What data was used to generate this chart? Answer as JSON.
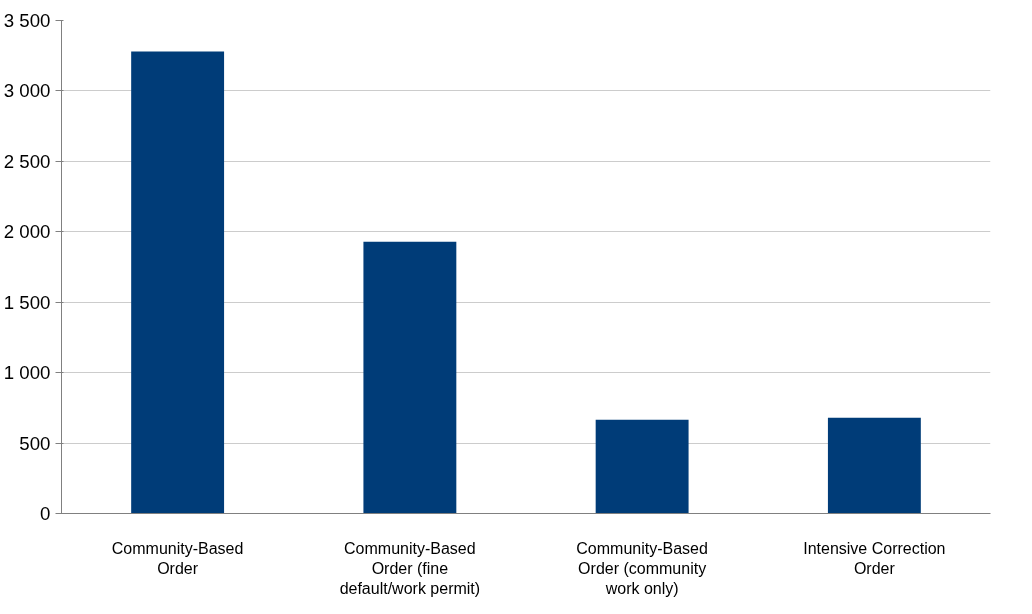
{
  "chart_data": {
    "type": "bar",
    "categories": [
      "Community-Based Order",
      "Community-Based Order (fine default/work permit)",
      "Community-Based Order (community work only)",
      "Intensive Correction Order"
    ],
    "values": [
      3280,
      1930,
      665,
      680
    ],
    "color": "#003c78",
    "ylim": [
      0,
      3500
    ],
    "yticks": [
      {
        "value": 0,
        "label": "0"
      },
      {
        "value": 500,
        "label": "500"
      },
      {
        "value": 1000,
        "label": "1 000"
      },
      {
        "value": 1500,
        "label": "1 500"
      },
      {
        "value": 2000,
        "label": "2 000"
      },
      {
        "value": 2500,
        "label": "2 500"
      },
      {
        "value": 3000,
        "label": "3 000"
      },
      {
        "value": 3500,
        "label": "3 500"
      }
    ],
    "grid": "y"
  }
}
